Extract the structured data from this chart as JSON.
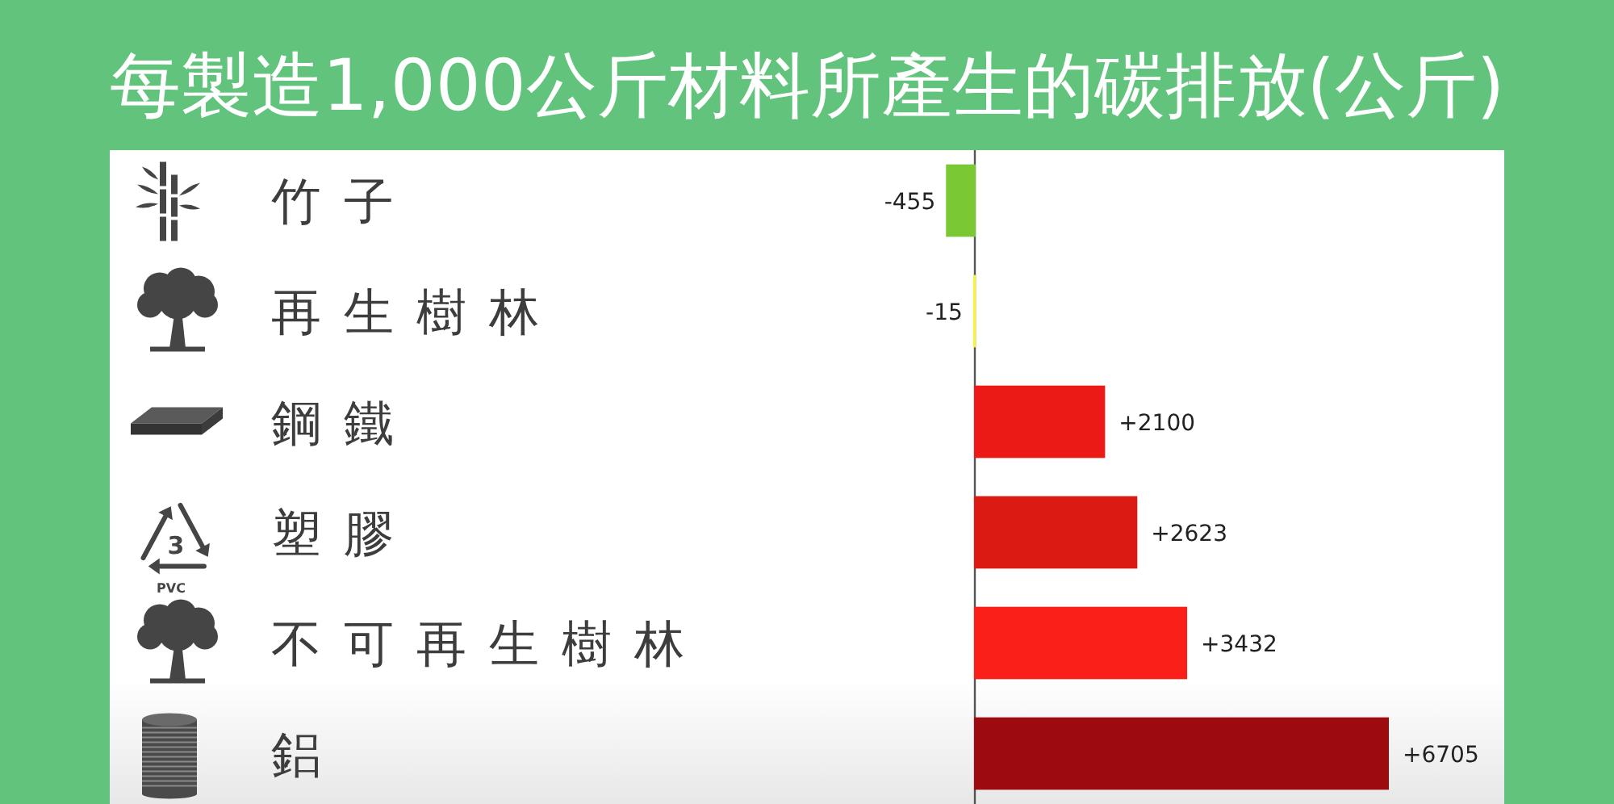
{
  "chart_data": {
    "type": "bar",
    "orientation": "horizontal",
    "title": "每製造1,000公斤材料所產生的碳排放(公斤)",
    "categories": [
      "竹子",
      "再生樹林",
      "鋼鐵",
      "塑膠",
      "不可再生樹林",
      "鋁"
    ],
    "values": [
      -455,
      -15,
      2100,
      2623,
      3432,
      6705
    ],
    "colors": [
      "#7ac833",
      "#f8f334",
      "#ec1a16",
      "#dc1a14",
      "#fa1f18",
      "#9e0b0e"
    ],
    "value_labels": [
      "-455",
      "-15",
      "+2100",
      "+2623",
      "+3432",
      "+6705"
    ],
    "annotations": [
      "3",
      "PVC"
    ]
  }
}
